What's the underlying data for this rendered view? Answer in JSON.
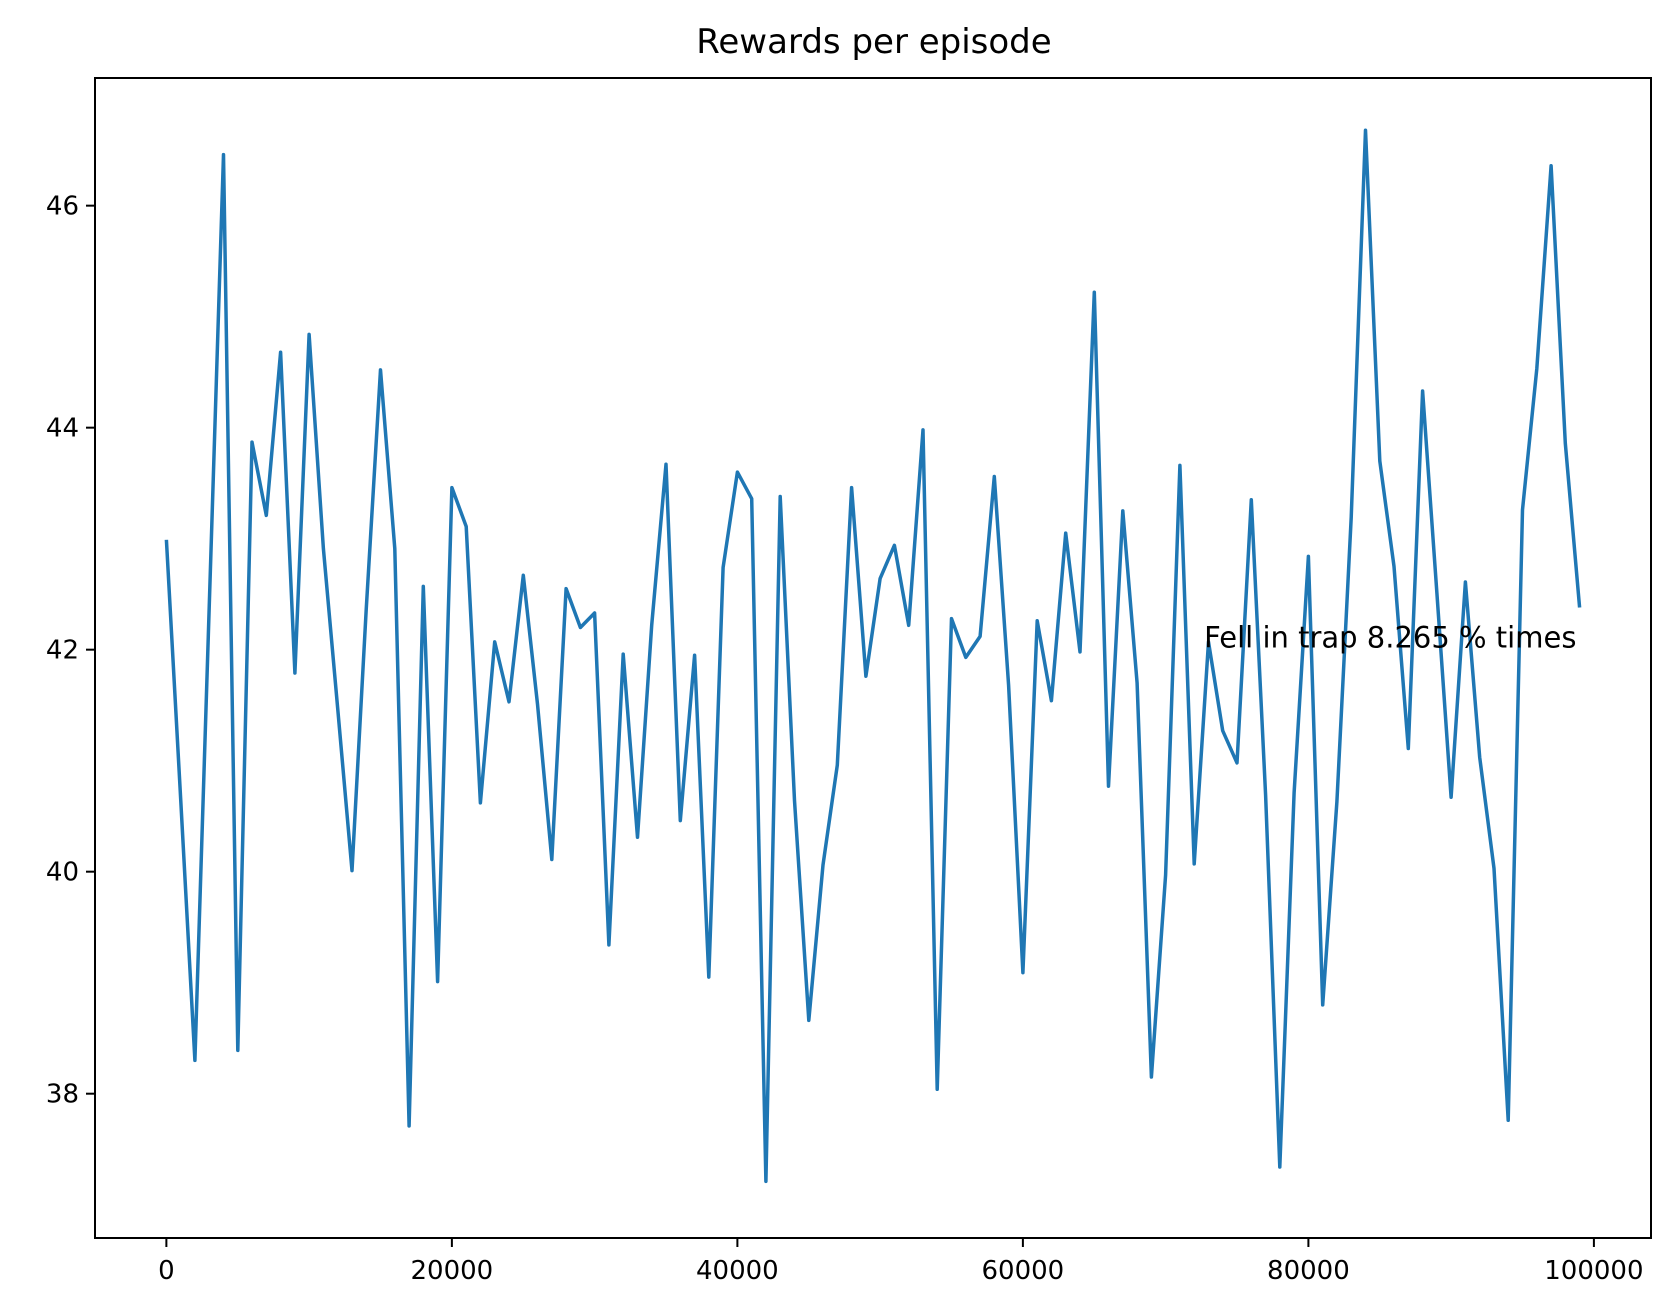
{
  "chart_data": {
    "type": "line",
    "title": "Rewards per episode",
    "xlabel": "",
    "ylabel": "",
    "xlim": [
      -5000,
      104000
    ],
    "ylim": [
      36.7,
      47.15
    ],
    "x_ticks": [
      0,
      20000,
      40000,
      60000,
      80000,
      100000
    ],
    "x_tick_labels": [
      "0",
      "20000",
      "40000",
      "60000",
      "80000",
      "100000"
    ],
    "y_ticks": [
      38,
      40,
      42,
      44,
      46
    ],
    "y_tick_labels": [
      "38",
      "40",
      "42",
      "44",
      "46"
    ],
    "grid": false,
    "legend": "none",
    "annotation": {
      "text": "Fell in trap 8.265 % times",
      "x": 72700,
      "y": 42.1
    },
    "series": [
      {
        "color": "#1f77b4",
        "x": [
          0,
          1000,
          2000,
          3000,
          4000,
          5000,
          6000,
          7000,
          8000,
          9000,
          10000,
          11000,
          12000,
          13000,
          14000,
          15000,
          16000,
          17000,
          18000,
          19000,
          20000,
          21000,
          22000,
          23000,
          24000,
          25000,
          26000,
          27000,
          28000,
          29000,
          30000,
          31000,
          32000,
          33000,
          34000,
          35000,
          36000,
          37000,
          38000,
          39000,
          40000,
          41000,
          42000,
          43000,
          44000,
          45000,
          46000,
          47000,
          48000,
          49000,
          50000,
          51000,
          52000,
          53000,
          54000,
          55000,
          56000,
          57000,
          58000,
          59000,
          60000,
          61000,
          62000,
          63000,
          64000,
          65000,
          66000,
          67000,
          68000,
          69000,
          70000,
          71000,
          72000,
          73000,
          74000,
          75000,
          76000,
          77000,
          78000,
          79000,
          80000,
          81000,
          82000,
          83000,
          84000,
          85000,
          86000,
          87000,
          88000,
          89000,
          90000,
          91000,
          92000,
          93000,
          94000,
          95000,
          96000,
          97000,
          98000,
          99000
        ],
        "y": [
          42.99,
          40.65,
          38.3,
          42.38,
          46.46,
          38.39,
          43.87,
          43.21,
          44.68,
          41.79,
          44.84,
          42.91,
          41.47,
          40.01,
          42.36,
          44.52,
          42.91,
          37.71,
          42.57,
          39.01,
          43.46,
          43.11,
          40.62,
          42.07,
          41.53,
          42.67,
          41.51,
          40.11,
          42.55,
          42.2,
          42.33,
          39.34,
          41.96,
          40.31,
          42.22,
          43.67,
          40.46,
          41.95,
          39.05,
          42.74,
          43.6,
          43.36,
          37.21,
          43.38,
          40.64,
          38.66,
          40.06,
          40.96,
          43.46,
          41.76,
          42.64,
          42.94,
          42.22,
          43.98,
          38.04,
          42.28,
          41.93,
          42.12,
          43.56,
          41.68,
          39.09,
          42.26,
          41.54,
          43.05,
          41.98,
          45.22,
          40.77,
          43.25,
          41.7,
          38.15,
          39.97,
          43.66,
          40.07,
          42.07,
          41.27,
          40.98,
          43.35,
          40.69,
          37.34,
          40.71,
          42.84,
          38.8,
          40.63,
          43.19,
          46.68,
          43.7,
          42.75,
          41.11,
          44.33,
          42.51,
          40.67,
          42.61,
          41.03,
          40.03,
          37.76,
          43.26,
          44.53,
          46.36,
          43.86,
          42.38
        ]
      }
    ]
  }
}
